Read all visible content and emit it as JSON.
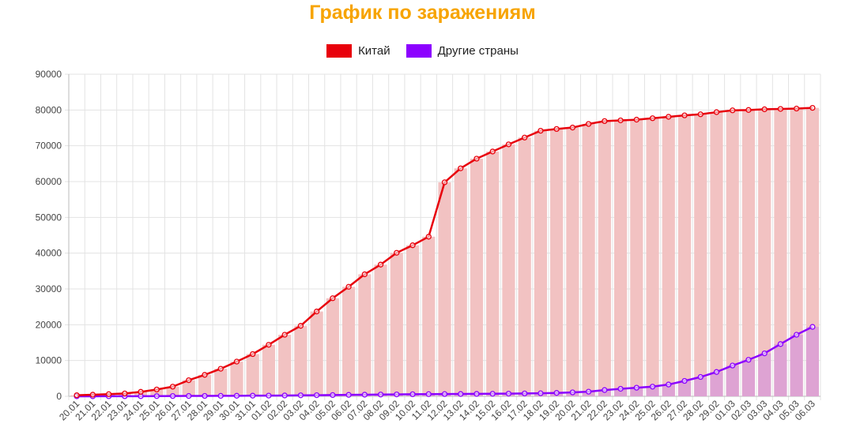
{
  "colors": {
    "title": "#f7a400",
    "china_line": "#e8000b",
    "china_bar": "#f2c2c2",
    "other_line": "#8c00ff",
    "other_bar": "#dea3d3",
    "grid": "#e3e3e3"
  },
  "chart_data": {
    "type": "line",
    "title": "График по заражениям",
    "legend_position": "top",
    "grid": true,
    "ylim": [
      0,
      90000
    ],
    "y_ticks": [
      0,
      10000,
      20000,
      30000,
      40000,
      50000,
      60000,
      70000,
      80000,
      90000
    ],
    "categories": [
      "20.01",
      "21.01",
      "22.01",
      "23.01",
      "24.01",
      "25.01",
      "26.01",
      "27.01",
      "28.01",
      "29.01",
      "30.01",
      "31.01",
      "01.02",
      "02.02",
      "03.02",
      "04.02",
      "05.02",
      "06.02",
      "07.02",
      "08.02",
      "09.02",
      "10.02",
      "11.02",
      "12.02",
      "13.02",
      "14.02",
      "15.02",
      "16.02",
      "17.02",
      "18.02",
      "19.02",
      "20.02",
      "21.02",
      "22.02",
      "23.02",
      "24.02",
      "25.02",
      "26.02",
      "27.02",
      "28.02",
      "29.02",
      "01.03",
      "02.03",
      "03.03",
      "04.03",
      "05.03",
      "06.03"
    ],
    "series": [
      {
        "name": "Китай",
        "values": [
          300,
          450,
          600,
          800,
          1250,
          1900,
          2700,
          4500,
          6000,
          7700,
          9700,
          11800,
          14400,
          17200,
          19700,
          23700,
          27400,
          30600,
          34100,
          36800,
          40100,
          42200,
          44600,
          59800,
          63700,
          66400,
          68400,
          70400,
          72300,
          74200,
          74700,
          75100,
          76100,
          76900,
          77100,
          77300,
          77700,
          78100,
          78500,
          78800,
          79400,
          79900,
          80000,
          80200,
          80300,
          80400,
          80600
        ]
      },
      {
        "name": "Другие страны",
        "values": [
          10,
          10,
          20,
          30,
          40,
          60,
          80,
          100,
          110,
          130,
          150,
          180,
          200,
          230,
          280,
          310,
          350,
          400,
          450,
          500,
          530,
          580,
          600,
          630,
          650,
          680,
          710,
          750,
          800,
          850,
          950,
          1100,
          1300,
          1750,
          2100,
          2400,
          2700,
          3300,
          4300,
          5400,
          6800,
          8600,
          10200,
          12000,
          14600,
          17200,
          19400
        ]
      }
    ]
  }
}
